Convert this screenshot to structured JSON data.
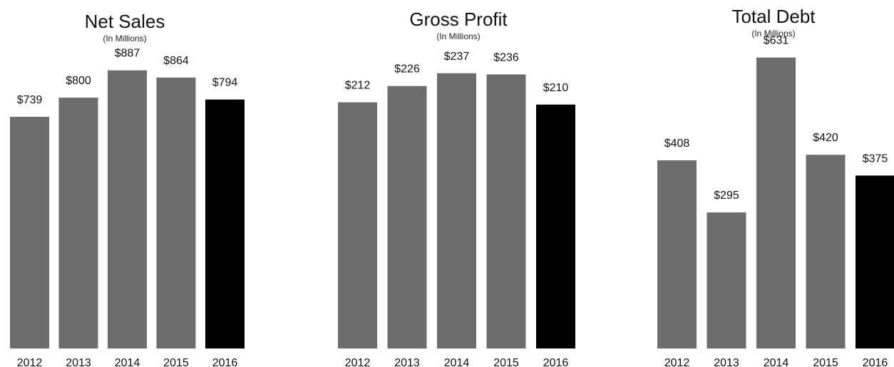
{
  "chart_data": [
    {
      "type": "bar",
      "title": "Net Sales",
      "subtitle": "(In Millions)",
      "categories": [
        "2012",
        "2013",
        "2014",
        "2015",
        "2016"
      ],
      "values": [
        739,
        800,
        887,
        864,
        794
      ],
      "value_labels": [
        "$739",
        "$800",
        "$887",
        "$864",
        "$794"
      ],
      "ylim": [
        0,
        1000
      ],
      "grid": false,
      "colors": [
        "#6d6d6d",
        "#6d6d6d",
        "#6d6d6d",
        "#6d6d6d",
        "#000000"
      ]
    },
    {
      "type": "bar",
      "title": "Gross Profit",
      "subtitle": "(In Millions)",
      "categories": [
        "2012",
        "2013",
        "2014",
        "2015",
        "2016"
      ],
      "values": [
        212,
        226,
        237,
        236,
        210
      ],
      "value_labels": [
        "$212",
        "$226",
        "$237",
        "$236",
        "$210"
      ],
      "ylim": [
        0,
        270
      ],
      "grid": false,
      "colors": [
        "#6d6d6d",
        "#6d6d6d",
        "#6d6d6d",
        "#6d6d6d",
        "#000000"
      ]
    },
    {
      "type": "bar",
      "title": "Total Debt",
      "subtitle": "(In Millions)",
      "categories": [
        "2012",
        "2013",
        "2014",
        "2015",
        "2016"
      ],
      "values": [
        408,
        295,
        631,
        420,
        375
      ],
      "value_labels": [
        "$408",
        "$295",
        "$631",
        "$420",
        "$375"
      ],
      "ylim": [
        0,
        680
      ],
      "grid": false,
      "colors": [
        "#6d6d6d",
        "#6d6d6d",
        "#6d6d6d",
        "#6d6d6d",
        "#000000"
      ]
    }
  ]
}
